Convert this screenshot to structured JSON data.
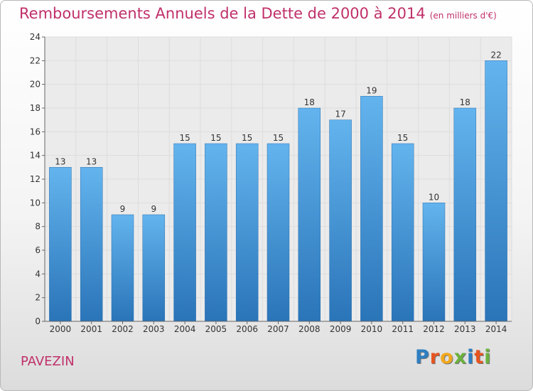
{
  "chart_data": {
    "type": "bar",
    "title": "Remboursements Annuels de la Dette de 2000 à 2014",
    "unit_note": "(en milliers d'€)",
    "categories": [
      "2000",
      "2001",
      "2002",
      "2003",
      "2004",
      "2005",
      "2006",
      "2007",
      "2008",
      "2009",
      "2010",
      "2011",
      "2012",
      "2013",
      "2014"
    ],
    "values": [
      13,
      13,
      9,
      9,
      15,
      15,
      15,
      15,
      18,
      17,
      19,
      15,
      10,
      18,
      22
    ],
    "ylim": [
      0,
      24
    ],
    "yticks": [
      0,
      2,
      4,
      6,
      8,
      10,
      12,
      14,
      16,
      18,
      20,
      22,
      24
    ],
    "grid": true,
    "bar_color": "#3c8fd4",
    "xlabel": "",
    "ylabel": ""
  },
  "commune": "PAVEZIN",
  "logo": {
    "text": "Proxiti",
    "letter_colors": [
      "#2e7fc1",
      "#e8541f",
      "#f2a81d",
      "#6ab13c",
      "#2e7fc1",
      "#e8541f",
      "#6ab13c"
    ]
  },
  "colors": {
    "title": "#c0306a",
    "grid": "#dddddd",
    "axis": "#666666"
  }
}
